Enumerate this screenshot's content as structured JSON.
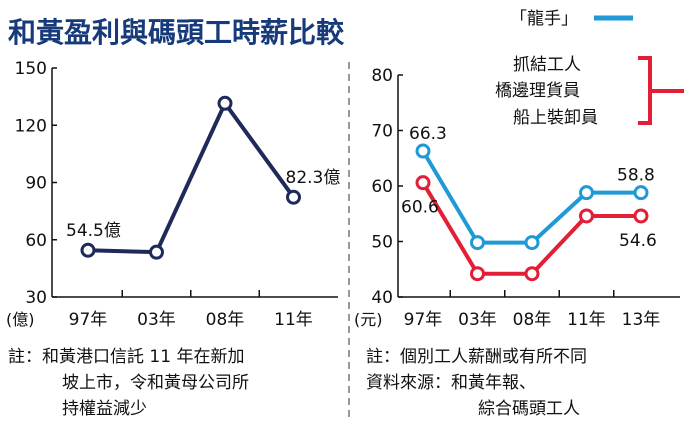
{
  "title": "和黃盈利與碼頭工時薪比較",
  "legend": {
    "blue_label": "「龍手」",
    "red_labels": [
      "抓結工人",
      "橋邊理貨員",
      "船上裝卸員"
    ]
  },
  "colors": {
    "title": "#163a7a",
    "left_line": "#1f2a5a",
    "blue": "#1f9ad6",
    "red": "#e21f36",
    "divider": "#999999"
  },
  "notes": {
    "left": [
      "註：和黃港口信託 11 年在新加",
      "坡上市，令和黃母公司所",
      "持權益減少"
    ],
    "right": [
      "註：個別工人薪酬或有所不同",
      "資料來源：和黃年報、",
      "綜合碼頭工人"
    ]
  },
  "chart_data": [
    {
      "type": "line",
      "unit": "(億)",
      "categories": [
        "97年",
        "03年",
        "08年",
        "11年"
      ],
      "ylim": [
        30,
        150
      ],
      "yticks": [
        30,
        60,
        90,
        120,
        150
      ],
      "grid": false,
      "series": [
        {
          "values": [
            54.5,
            53.5,
            131.5,
            82.3
          ]
        }
      ],
      "data_labels": [
        {
          "text": "54.5億",
          "index": 0
        },
        {
          "text": "82.3億",
          "index": 3
        }
      ]
    },
    {
      "type": "line",
      "unit": "(元)",
      "categories": [
        "97年",
        "03年",
        "08年",
        "11年",
        "13年"
      ],
      "ylim": [
        40,
        80
      ],
      "yticks": [
        40,
        50,
        60,
        70,
        80
      ],
      "grid": false,
      "series": [
        {
          "name": "「龍手」",
          "values": [
            66.3,
            49.8,
            49.8,
            58.8,
            58.8
          ]
        },
        {
          "values": [
            60.6,
            44.2,
            44.2,
            54.6,
            54.6
          ]
        }
      ],
      "data_labels": [
        {
          "text": "66.3",
          "series": 0,
          "index": 0
        },
        {
          "text": "58.8",
          "series": 0,
          "index": 4
        },
        {
          "text": "60.6",
          "series": 1,
          "index": 0
        },
        {
          "text": "54.6",
          "series": 1,
          "index": 4
        }
      ]
    }
  ]
}
